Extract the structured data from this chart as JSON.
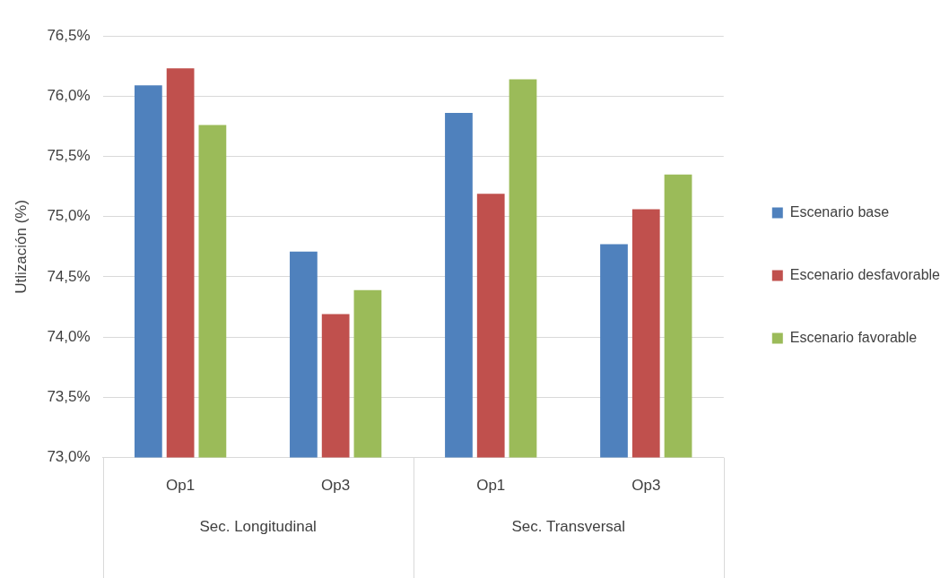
{
  "chart_data": {
    "type": "bar",
    "ylabel": "Utlización (%)",
    "categories": [
      "Op1",
      "Op3",
      "Op1",
      "Op3"
    ],
    "annotations": [
      "Sec. Longitudinal",
      "Sec. Transversal"
    ],
    "series": [
      {
        "name": "Escenario base",
        "color": "#4f81bd",
        "values": [
          76.09,
          74.71,
          75.86,
          74.77
        ]
      },
      {
        "name": "Escenario desfavorable",
        "color": "#c0504d",
        "values": [
          76.23,
          74.19,
          75.19,
          75.06
        ]
      },
      {
        "name": "Escenario favorable",
        "color": "#9bbb59",
        "values": [
          75.76,
          74.39,
          76.14,
          75.35
        ]
      }
    ],
    "ylim": [
      73,
      76.5
    ],
    "yticks": [
      {
        "value": 73,
        "label": "73,0%"
      },
      {
        "value": 73.5,
        "label": "73,5%"
      },
      {
        "value": 74,
        "label": "74,0%"
      },
      {
        "value": 74.5,
        "label": "74,5%"
      },
      {
        "value": 75,
        "label": "75,0%"
      },
      {
        "value": 75.5,
        "label": "75,5%"
      },
      {
        "value": 76,
        "label": "76,0%"
      },
      {
        "value": 76.5,
        "label": "76,5%"
      }
    ],
    "grid": "y",
    "legend": "right"
  }
}
